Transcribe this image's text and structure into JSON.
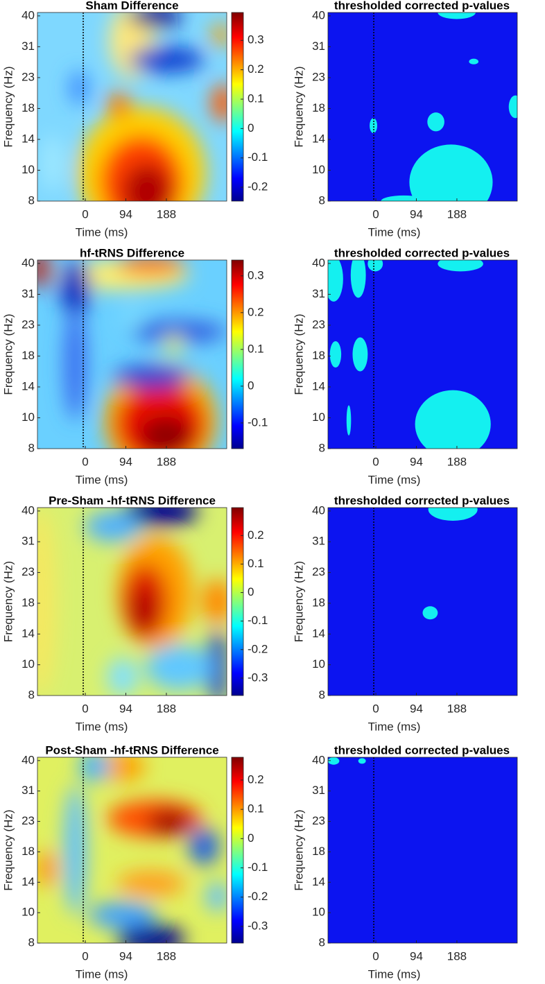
{
  "chart_data": [
    {
      "type": "heatmap",
      "title": "Sham Difference",
      "xlabel": "Time (ms)",
      "ylabel": "Frequency (Hz)",
      "xlim": [
        -111,
        328
      ],
      "xticks": [
        0,
        94,
        188
      ],
      "ylim": [
        0,
        6.11
      ],
      "yticks": [
        {
          "value": 0,
          "label": "8"
        },
        {
          "value": 1,
          "label": "10"
        },
        {
          "value": 2,
          "label": "14"
        },
        {
          "value": 3,
          "label": "18"
        },
        {
          "value": 4,
          "label": "23"
        },
        {
          "value": 5,
          "label": "31"
        },
        {
          "value": 6,
          "label": "40"
        }
      ],
      "colorbar": {
        "clim": [
          -0.247,
          0.395
        ],
        "ticks": [
          -0.2,
          -0.1,
          0,
          0.1,
          0.2,
          0.3
        ]
      }
    },
    {
      "type": "mask",
      "title": "thresholded corrected p-values",
      "xlabel": "Time (ms)",
      "ylabel": "Frequency (Hz)",
      "xlim": [
        -111,
        328
      ],
      "xticks": [
        0,
        94,
        188
      ],
      "ylim": [
        0,
        6.11
      ],
      "yticks": [
        {
          "value": 0,
          "label": "8"
        },
        {
          "value": 1,
          "label": "10"
        },
        {
          "value": 2,
          "label": "14"
        },
        {
          "value": 3,
          "label": "18"
        },
        {
          "value": 4,
          "label": "23"
        },
        {
          "value": 5,
          "label": "31"
        },
        {
          "value": 6,
          "label": "40"
        }
      ]
    },
    {
      "type": "heatmap",
      "title": "hf-tRNS Difference",
      "xlabel": "Time (ms)",
      "ylabel": "Frequency (Hz)",
      "xlim": [
        -111,
        328
      ],
      "xticks": [
        0,
        94,
        188
      ],
      "ylim": [
        0,
        6.11
      ],
      "yticks": [
        {
          "value": 0,
          "label": "8"
        },
        {
          "value": 1,
          "label": "10"
        },
        {
          "value": 2,
          "label": "14"
        },
        {
          "value": 3,
          "label": "18"
        },
        {
          "value": 4,
          "label": "23"
        },
        {
          "value": 5,
          "label": "31"
        },
        {
          "value": 6,
          "label": "40"
        }
      ],
      "colorbar": {
        "clim": [
          -0.17,
          0.343
        ],
        "ticks": [
          -0.1,
          0,
          0.1,
          0.2,
          0.3
        ]
      }
    },
    {
      "type": "mask",
      "title": "thresholded corrected p-values",
      "xlabel": "Time (ms)",
      "ylabel": "Frequency (Hz)",
      "xlim": [
        -111,
        328
      ],
      "xticks": [
        0,
        94,
        188
      ],
      "ylim": [
        0,
        6.11
      ],
      "yticks": [
        {
          "value": 0,
          "label": "8"
        },
        {
          "value": 1,
          "label": "10"
        },
        {
          "value": 2,
          "label": "14"
        },
        {
          "value": 3,
          "label": "18"
        },
        {
          "value": 4,
          "label": "23"
        },
        {
          "value": 5,
          "label": "31"
        },
        {
          "value": 6,
          "label": "40"
        }
      ]
    },
    {
      "type": "heatmap",
      "title": "Pre-Sham -hf-tRNS Difference",
      "xlabel": "Time (ms)",
      "ylabel": "Frequency (Hz)",
      "xlim": [
        -111,
        328
      ],
      "xticks": [
        0,
        94,
        188
      ],
      "ylim": [
        0,
        6.11
      ],
      "yticks": [
        {
          "value": 0,
          "label": "8"
        },
        {
          "value": 1,
          "label": "10"
        },
        {
          "value": 2,
          "label": "14"
        },
        {
          "value": 3,
          "label": "18"
        },
        {
          "value": 4,
          "label": "23"
        },
        {
          "value": 5,
          "label": "31"
        },
        {
          "value": 6,
          "label": "40"
        }
      ],
      "colorbar": {
        "clim": [
          -0.361,
          0.298
        ],
        "ticks": [
          -0.3,
          -0.2,
          -0.1,
          0,
          0.1,
          0.2
        ]
      }
    },
    {
      "type": "mask",
      "title": "thresholded corrected p-values",
      "xlabel": "Time (ms)",
      "ylabel": "Frequency (Hz)",
      "xlim": [
        -111,
        328
      ],
      "xticks": [
        0,
        94,
        188
      ],
      "ylim": [
        0,
        6.11
      ],
      "yticks": [
        {
          "value": 0,
          "label": "8"
        },
        {
          "value": 1,
          "label": "10"
        },
        {
          "value": 2,
          "label": "14"
        },
        {
          "value": 3,
          "label": "18"
        },
        {
          "value": 4,
          "label": "23"
        },
        {
          "value": 5,
          "label": "31"
        },
        {
          "value": 6,
          "label": "40"
        }
      ]
    },
    {
      "type": "heatmap",
      "title": "Post-Sham -hf-tRNS Difference",
      "xlabel": "Time (ms)",
      "ylabel": "Frequency (Hz)",
      "xlim": [
        -111,
        328
      ],
      "xticks": [
        0,
        94,
        188
      ],
      "ylim": [
        0,
        6.11
      ],
      "yticks": [
        {
          "value": 0,
          "label": "8"
        },
        {
          "value": 1,
          "label": "10"
        },
        {
          "value": 2,
          "label": "14"
        },
        {
          "value": 3,
          "label": "18"
        },
        {
          "value": 4,
          "label": "23"
        },
        {
          "value": 5,
          "label": "31"
        },
        {
          "value": 6,
          "label": "40"
        }
      ],
      "colorbar": {
        "clim": [
          -0.357,
          0.278
        ],
        "ticks": [
          -0.3,
          -0.2,
          -0.1,
          0,
          0.1,
          0.2
        ]
      }
    },
    {
      "type": "mask",
      "title": "thresholded corrected p-values",
      "xlabel": "Time (ms)",
      "ylabel": "Frequency (Hz)",
      "xlim": [
        -111,
        328
      ],
      "xticks": [
        0,
        94,
        188
      ],
      "ylim": [
        0,
        6.11
      ],
      "yticks": [
        {
          "value": 0,
          "label": "8"
        },
        {
          "value": 1,
          "label": "10"
        },
        {
          "value": 2,
          "label": "14"
        },
        {
          "value": 3,
          "label": "18"
        },
        {
          "value": 4,
          "label": "23"
        },
        {
          "value": 5,
          "label": "31"
        },
        {
          "value": 6,
          "label": "40"
        }
      ]
    }
  ]
}
